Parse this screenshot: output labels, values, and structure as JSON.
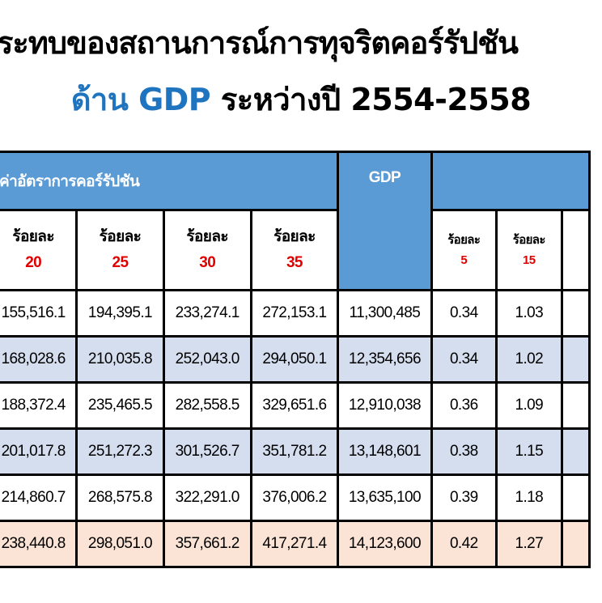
{
  "title": {
    "line1": "ระทบของสถานการณ์การทุจริตคอร์รัปชัน",
    "line2_blue": "ด้าน GDP",
    "line2_rest": " ระหว่างปี 2554-2558"
  },
  "colors": {
    "header_blue": "#5b9bd5",
    "title_blue": "#1f74c0",
    "percent_red": "#e00000",
    "row_alt": "#d5deef",
    "row_total": "#fbe4d6"
  },
  "table": {
    "group_header": "ค่าอัตราการคอร์รัปชัน",
    "gdp_header": "GDP",
    "sub_headers": [
      {
        "label": "ร้อยละ",
        "pct": "20"
      },
      {
        "label": "ร้อยละ",
        "pct": "25"
      },
      {
        "label": "ร้อยละ",
        "pct": "30"
      },
      {
        "label": "ร้อยละ",
        "pct": "35"
      }
    ],
    "ratio_headers": [
      {
        "label": "ร้อยละ",
        "pct": "5"
      },
      {
        "label": "ร้อยละ",
        "pct": "15"
      }
    ],
    "rows": [
      [
        "155,516.1",
        "194,395.1",
        "233,274.1",
        "272,153.1",
        "11,300,485",
        "0.34",
        "1.03"
      ],
      [
        "168,028.6",
        "210,035.8",
        "252,043.0",
        "294,050.1",
        "12,354,656",
        "0.34",
        "1.02"
      ],
      [
        "188,372.4",
        "235,465.5",
        "282,558.5",
        "329,651.6",
        "12,910,038",
        "0.36",
        "1.09"
      ],
      [
        "201,017.8",
        "251,272.3",
        "301,526.7",
        "351,781.2",
        "13,148,601",
        "0.38",
        "1.15"
      ],
      [
        "214,860.7",
        "268,575.8",
        "322,291.0",
        "376,006.2",
        "13,635,100",
        "0.39",
        "1.18"
      ],
      [
        "238,440.8",
        "298,051.0",
        "357,661.2",
        "417,271.4",
        "14,123,600",
        "0.42",
        "1.27"
      ]
    ]
  }
}
